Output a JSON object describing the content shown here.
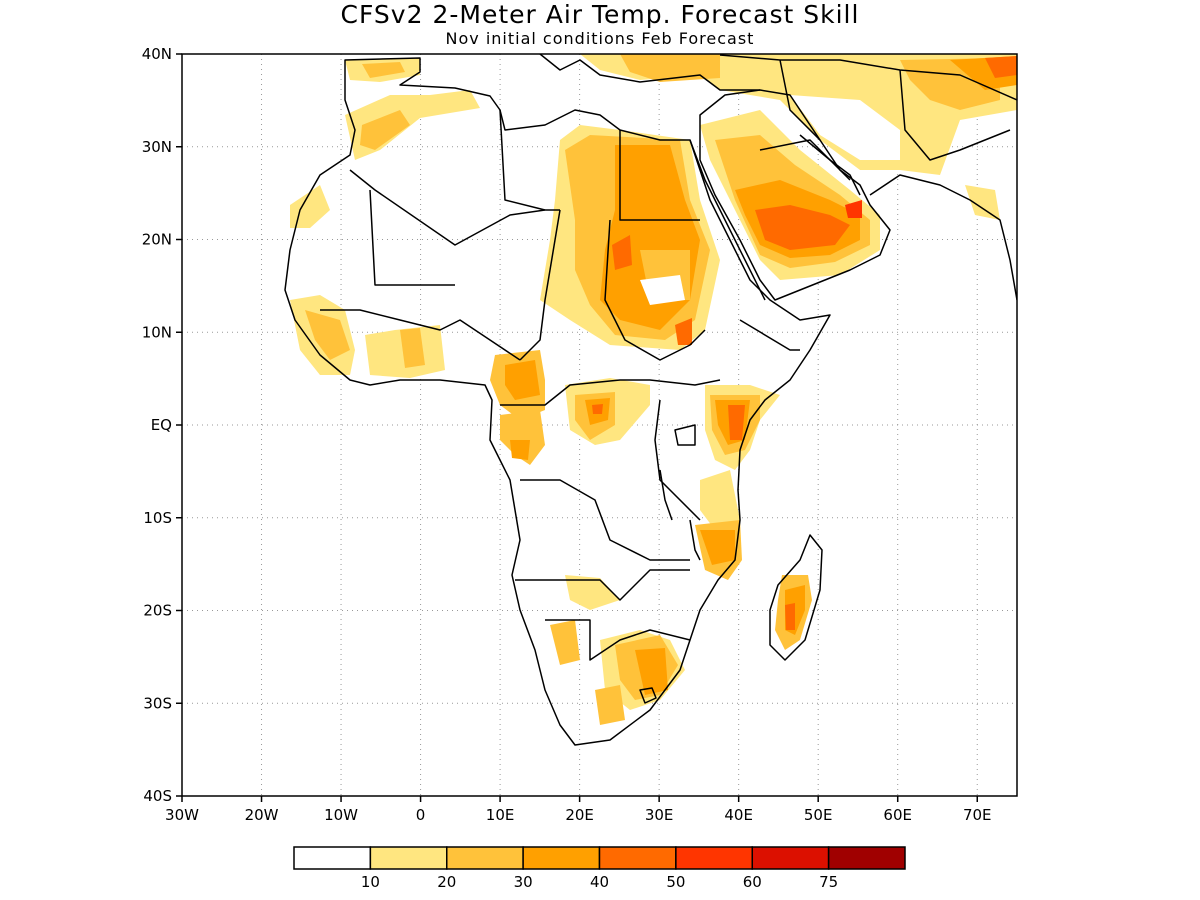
{
  "title": "CFSv2 2-Meter Air Temp. Forecast Skill",
  "subtitle": "Nov initial conditions  Feb Forecast",
  "map": {
    "lon_range": [
      -30,
      75
    ],
    "lat_range": [
      -40,
      40
    ],
    "grid": "dotted",
    "lat_labels": [
      "40N",
      "30N",
      "20N",
      "10N",
      "EQ",
      "10S",
      "20S",
      "30S",
      "40S"
    ],
    "lon_labels": [
      "30W",
      "20W",
      "10W",
      "0",
      "10E",
      "20E",
      "30E",
      "40E",
      "50E",
      "60E",
      "70E"
    ]
  },
  "colorbar": {
    "colors": [
      "#ffffff",
      "#ffe680",
      "#ffc23a",
      "#ffa000",
      "#ff6a00",
      "#ff3500",
      "#dc1000",
      "#a00000"
    ],
    "labels": [
      "10",
      "20",
      "30",
      "40",
      "50",
      "60",
      "75"
    ]
  }
}
